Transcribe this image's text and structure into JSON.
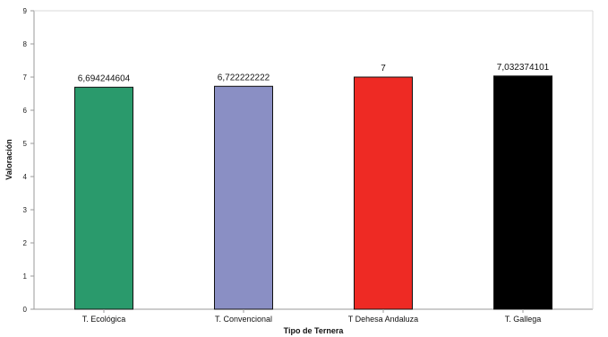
{
  "chart_data": {
    "type": "bar",
    "title": "",
    "xlabel": "Tipo de Ternera",
    "ylabel": "Valoración",
    "ylim": [
      0,
      9
    ],
    "yticks": [
      0,
      1,
      2,
      3,
      4,
      5,
      6,
      7,
      8,
      9
    ],
    "grid": false,
    "legend": "none",
    "categories": [
      "T. Ecológica",
      "T. Convencional",
      "T Dehesa Andaluza",
      "T. Gallega"
    ],
    "values": [
      6.694244604,
      6.722222222,
      7,
      7.032374101
    ],
    "value_labels": [
      "6,694244604",
      "6,722222222",
      "7",
      "7,032374101"
    ],
    "colors": [
      "#2a9a6c",
      "#8a8fc4",
      "#ee2a24",
      "#000000"
    ],
    "bar_outline": "#111111"
  }
}
